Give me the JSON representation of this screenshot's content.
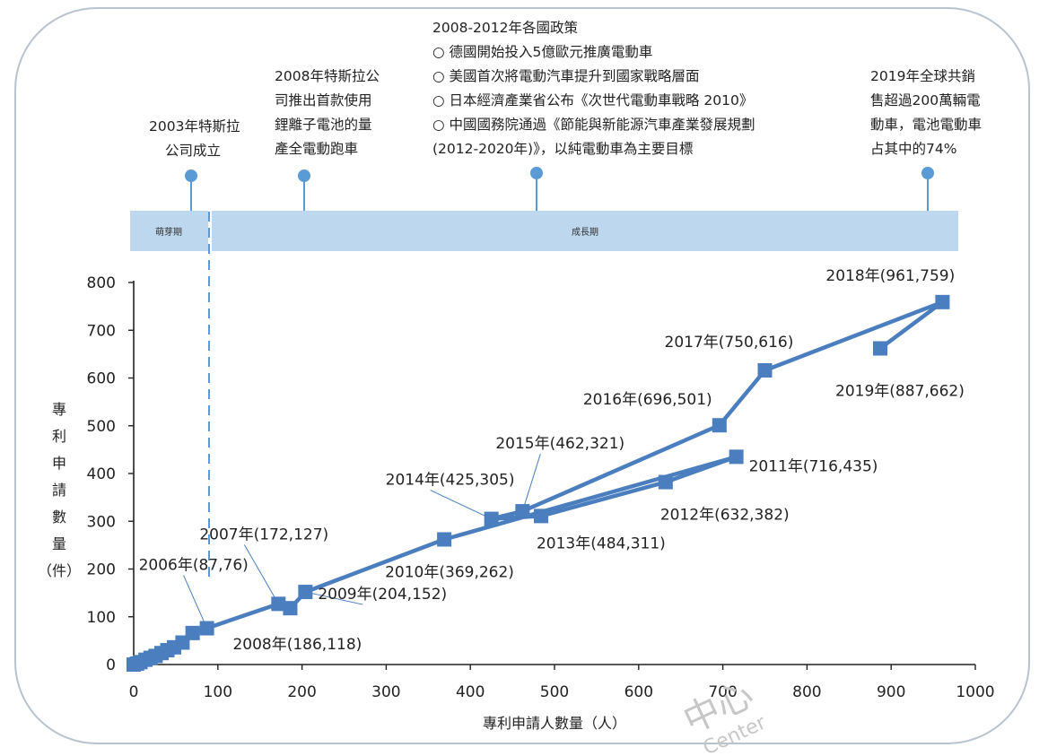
{
  "timeline": {
    "stages": [
      {
        "label": "萌芽期"
      },
      {
        "label": "成長期"
      }
    ],
    "events": [
      {
        "lines": [
          "2003年特斯拉",
          "公司成立"
        ]
      },
      {
        "lines": [
          "2008年特斯拉公",
          "司推出首款使用",
          "鋰離子電池的量",
          "產全電動跑車"
        ]
      },
      {
        "lines": [
          "2008-2012年各國政策",
          "○ 德國開始投入5億歐元推廣電動車",
          "○ 美國首次將電動汽車提升到國家戰略層面",
          "○ 日本經濟產業省公布《次世代電動車戰略 2010》",
          "○ 中國國務院通過《節能與新能源汽車產業發展規劃",
          "(2012-2020年)》，以純電動車為主要目標"
        ]
      },
      {
        "lines": [
          "2019年全球共銷",
          "售超過200萬輛電",
          "動車，電池電動車",
          "占其中的74%"
        ]
      }
    ]
  },
  "chart_data": {
    "type": "line",
    "xlabel": "專利申請人數量（人）",
    "ylabel": "專利申請數量（件）",
    "xlim": [
      0,
      1000
    ],
    "ylim": [
      0,
      800
    ],
    "xticks": [
      "0",
      "100",
      "200",
      "300",
      "400",
      "500",
      "600",
      "700",
      "800",
      "900",
      "1000"
    ],
    "yticks": [
      "0",
      "100",
      "200",
      "300",
      "400",
      "500",
      "600",
      "700",
      "800"
    ],
    "series": [
      {
        "points": [
          {
            "x": 0,
            "y": 0
          },
          {
            "x": 4,
            "y": 2
          },
          {
            "x": 8,
            "y": 5
          },
          {
            "x": 14,
            "y": 10
          },
          {
            "x": 20,
            "y": 14
          },
          {
            "x": 26,
            "y": 18
          },
          {
            "x": 33,
            "y": 24
          },
          {
            "x": 40,
            "y": 30
          },
          {
            "x": 48,
            "y": 36
          },
          {
            "x": 58,
            "y": 46
          },
          {
            "x": 70,
            "y": 66
          },
          {
            "x": 87,
            "y": 76,
            "label": "2006年(87,76)"
          },
          {
            "x": 172,
            "y": 127,
            "label": "2007年(172,127)"
          },
          {
            "x": 186,
            "y": 118,
            "label": "2008年(186,118)"
          },
          {
            "x": 204,
            "y": 152,
            "label": "2009年(204,152)"
          },
          {
            "x": 369,
            "y": 262,
            "label": "2010年(369,262)"
          },
          {
            "x": 716,
            "y": 435,
            "label": "2011年(716,435)"
          },
          {
            "x": 632,
            "y": 382,
            "label": "2012年(632,382)"
          },
          {
            "x": 484,
            "y": 311,
            "label": "2013年(484,311)"
          },
          {
            "x": 425,
            "y": 305,
            "label": "2014年(425,305)"
          },
          {
            "x": 462,
            "y": 321,
            "label": "2015年(462,321)"
          },
          {
            "x": 696,
            "y": 501,
            "label": "2016年(696,501)"
          },
          {
            "x": 750,
            "y": 616,
            "label": "2017年(750,616)"
          },
          {
            "x": 961,
            "y": 759,
            "label": "2018年(961,759)"
          },
          {
            "x": 887,
            "y": 662,
            "label": "2019年(887,662)"
          }
        ]
      }
    ],
    "colors": {
      "line": "#4a7ebf",
      "band": "#bdd7ee",
      "pin": "#5b9bd5"
    }
  },
  "watermark": {
    "text_cn": "中心",
    "text_en": "Center"
  }
}
